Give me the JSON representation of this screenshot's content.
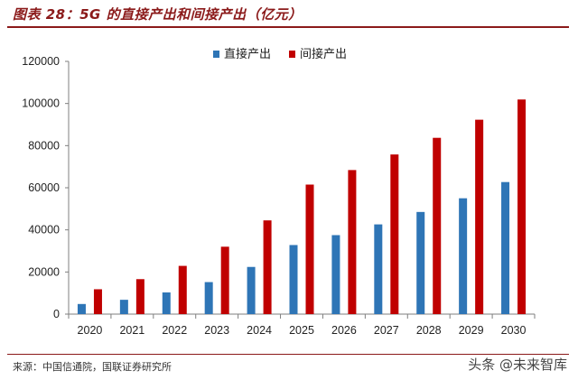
{
  "header": {
    "title": "图表 28：5G 的直接产出和间接产出（亿元）"
  },
  "footer": {
    "source": "来源：中国信通院，国联证券研究所",
    "watermark": "头条 @未来智库"
  },
  "colors": {
    "direct": "#2e75b6",
    "indirect": "#c00000",
    "accent": "#8b1a1a"
  },
  "chart_data": {
    "type": "bar",
    "title": "图表 28：5G 的直接产出和间接产出（亿元）",
    "categories": [
      "2020",
      "2021",
      "2022",
      "2023",
      "2024",
      "2025",
      "2026",
      "2027",
      "2028",
      "2029",
      "2030"
    ],
    "series": [
      {
        "name": "直接产出",
        "values": [
          4800,
          6800,
          10300,
          15200,
          22400,
          32800,
          37500,
          42600,
          48500,
          55000,
          62700
        ]
      },
      {
        "name": "间接产出",
        "values": [
          11800,
          16600,
          22900,
          32000,
          44500,
          61500,
          68400,
          75800,
          83700,
          92300,
          101900
        ]
      }
    ],
    "ylim": [
      0,
      120000
    ],
    "yticks": [
      "0",
      "20000",
      "40000",
      "60000",
      "80000",
      "100000",
      "120000"
    ],
    "legend": "top-center",
    "grid": false
  }
}
